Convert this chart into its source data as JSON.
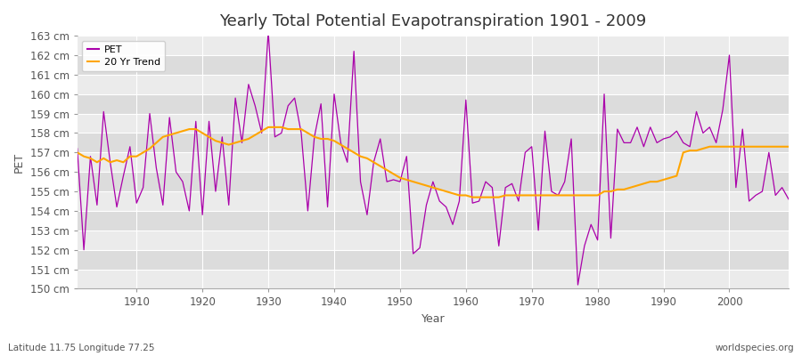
{
  "title": "Yearly Total Potential Evapotranspiration 1901 - 2009",
  "xlabel": "Year",
  "ylabel": "PET",
  "subtitle_left": "Latitude 11.75 Longitude 77.25",
  "subtitle_right": "worldspecies.org",
  "ylim": [
    150,
    163
  ],
  "xlim": [
    1901,
    2009
  ],
  "ytick_labels": [
    "150 cm",
    "151 cm",
    "152 cm",
    "153 cm",
    "154 cm",
    "155 cm",
    "156 cm",
    "157 cm",
    "158 cm",
    "159 cm",
    "160 cm",
    "161 cm",
    "162 cm",
    "163 cm"
  ],
  "ytick_values": [
    150,
    151,
    152,
    153,
    154,
    155,
    156,
    157,
    158,
    159,
    160,
    161,
    162,
    163
  ],
  "pet_color": "#AA00AA",
  "trend_color": "#FFA500",
  "fig_background_color": "#FFFFFF",
  "plot_background_color": "#E8E8E8",
  "band_light": "#EBEBEB",
  "band_dark": "#DCDCDC",
  "grid_color": "#FFFFFF",
  "years": [
    1901,
    1902,
    1903,
    1904,
    1905,
    1906,
    1907,
    1908,
    1909,
    1910,
    1911,
    1912,
    1913,
    1914,
    1915,
    1916,
    1917,
    1918,
    1919,
    1920,
    1921,
    1922,
    1923,
    1924,
    1925,
    1926,
    1927,
    1928,
    1929,
    1930,
    1931,
    1932,
    1933,
    1934,
    1935,
    1936,
    1937,
    1938,
    1939,
    1940,
    1941,
    1942,
    1943,
    1944,
    1945,
    1946,
    1947,
    1948,
    1949,
    1950,
    1951,
    1952,
    1953,
    1954,
    1955,
    1956,
    1957,
    1958,
    1959,
    1960,
    1961,
    1962,
    1963,
    1964,
    1965,
    1966,
    1967,
    1968,
    1969,
    1970,
    1971,
    1972,
    1973,
    1974,
    1975,
    1976,
    1977,
    1978,
    1979,
    1980,
    1981,
    1982,
    1983,
    1984,
    1985,
    1986,
    1987,
    1988,
    1989,
    1990,
    1991,
    1992,
    1993,
    1994,
    1995,
    1996,
    1997,
    1998,
    1999,
    2000,
    2001,
    2002,
    2003,
    2004,
    2005,
    2006,
    2007,
    2008,
    2009
  ],
  "pet_values": [
    157.2,
    152.0,
    156.8,
    154.3,
    159.1,
    156.5,
    154.2,
    155.8,
    157.3,
    154.4,
    155.2,
    159.0,
    156.2,
    154.3,
    158.8,
    156.0,
    155.5,
    154.0,
    158.6,
    153.8,
    158.6,
    155.0,
    157.8,
    154.3,
    159.8,
    157.5,
    160.5,
    159.4,
    158.0,
    163.2,
    157.8,
    158.0,
    159.4,
    159.8,
    158.0,
    154.0,
    157.8,
    159.5,
    154.2,
    160.0,
    157.5,
    156.5,
    162.2,
    155.5,
    153.8,
    156.5,
    157.7,
    155.5,
    155.6,
    155.5,
    156.8,
    151.8,
    152.1,
    154.3,
    155.5,
    154.5,
    154.2,
    153.3,
    154.5,
    159.7,
    154.4,
    154.5,
    155.5,
    155.2,
    152.2,
    155.2,
    155.4,
    154.5,
    157.0,
    157.3,
    153.0,
    158.1,
    155.0,
    154.8,
    155.5,
    157.7,
    150.2,
    152.2,
    153.3,
    152.5,
    160.0,
    152.6,
    158.2,
    157.5,
    157.5,
    158.3,
    157.3,
    158.3,
    157.5,
    157.7,
    157.8,
    158.1,
    157.5,
    157.3,
    159.1,
    158.0,
    158.3,
    157.5,
    159.2,
    162.0,
    155.2,
    158.2,
    154.5,
    154.8,
    155.0,
    157.0,
    154.8,
    155.2,
    154.6
  ],
  "trend_values": [
    157.0,
    156.8,
    156.7,
    156.5,
    156.7,
    156.5,
    156.6,
    156.5,
    156.8,
    156.8,
    157.0,
    157.2,
    157.5,
    157.8,
    157.9,
    158.0,
    158.1,
    158.2,
    158.2,
    158.0,
    157.8,
    157.6,
    157.5,
    157.4,
    157.5,
    157.6,
    157.7,
    157.9,
    158.1,
    158.3,
    158.3,
    158.3,
    158.2,
    158.2,
    158.2,
    158.0,
    157.8,
    157.7,
    157.7,
    157.6,
    157.4,
    157.2,
    157.0,
    156.8,
    156.7,
    156.5,
    156.3,
    156.1,
    155.9,
    155.7,
    155.6,
    155.5,
    155.4,
    155.3,
    155.2,
    155.1,
    155.0,
    154.9,
    154.8,
    154.8,
    154.7,
    154.7,
    154.7,
    154.7,
    154.7,
    154.8,
    154.8,
    154.8,
    154.8,
    154.8,
    154.8,
    154.8,
    154.8,
    154.8,
    154.8,
    154.8,
    154.8,
    154.8,
    154.8,
    154.8,
    155.0,
    155.0,
    155.1,
    155.1,
    155.2,
    155.3,
    155.4,
    155.5,
    155.5,
    155.6,
    155.7,
    155.8,
    157.0,
    157.1,
    157.1,
    157.2,
    157.3,
    157.3,
    157.3,
    157.3,
    157.3,
    157.3,
    157.3,
    157.3,
    157.3,
    157.3,
    157.3,
    157.3,
    157.3
  ],
  "legend_pet_label": "PET",
  "legend_trend_label": "20 Yr Trend",
  "title_fontsize": 13,
  "label_fontsize": 9,
  "tick_fontsize": 8.5
}
